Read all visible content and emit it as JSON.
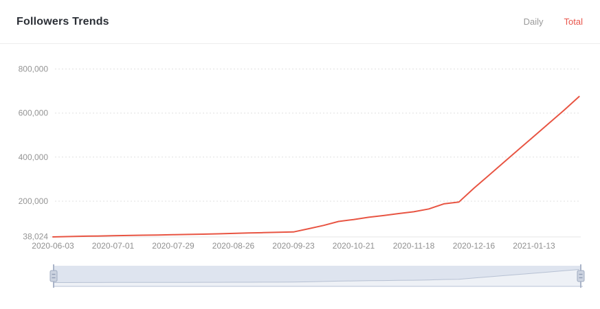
{
  "header": {
    "title": "Followers Trends",
    "tabs": [
      {
        "label": "Daily",
        "active": false
      },
      {
        "label": "Total",
        "active": true
      }
    ]
  },
  "colors": {
    "accent_line": "#e85442",
    "tab_active": "#e8544a",
    "tab_inactive": "#9a9a9a",
    "gridline": "#e0e0e0",
    "axis_line": "#e6e6e6",
    "slider_band": "#dee4ef",
    "slider_shadow": "#eef1f6",
    "slider_curve": "#b7c1d3",
    "slider_handle_fill": "#ccd3e0",
    "slider_handle_border": "#9fabc0"
  },
  "chart_data": {
    "type": "line",
    "title": "Followers Trends",
    "legend": "none",
    "grid": "horizontal dotted",
    "ylim": [
      38024,
      800000
    ],
    "y_tick_values": [
      38024,
      200000,
      400000,
      600000,
      800000
    ],
    "y_tick_labels": [
      "38,024",
      "200,000",
      "400,000",
      "600,000",
      "800,000"
    ],
    "x_tick_labels": [
      "2020-06-03",
      "2020-07-01",
      "2020-07-29",
      "2020-08-26",
      "2020-09-23",
      "2020-10-21",
      "2020-11-18",
      "2020-12-16",
      "2021-01-13"
    ],
    "x": [
      "2020-06-03",
      "2020-06-10",
      "2020-06-17",
      "2020-06-24",
      "2020-07-01",
      "2020-07-08",
      "2020-07-15",
      "2020-07-22",
      "2020-07-29",
      "2020-08-05",
      "2020-08-12",
      "2020-08-19",
      "2020-08-26",
      "2020-09-02",
      "2020-09-09",
      "2020-09-16",
      "2020-09-23",
      "2020-09-30",
      "2020-10-07",
      "2020-10-14",
      "2020-10-21",
      "2020-10-28",
      "2020-11-04",
      "2020-11-11",
      "2020-11-18",
      "2020-11-25",
      "2020-12-02",
      "2020-12-09",
      "2020-12-16",
      "2020-12-23",
      "2020-12-30",
      "2021-01-06",
      "2021-01-13",
      "2021-01-20",
      "2021-01-27",
      "2021-02-03"
    ],
    "series": [
      {
        "name": "Total",
        "color": "#e85442",
        "values": [
          38024,
          39500,
          41000,
          42200,
          43500,
          44600,
          45700,
          46800,
          47900,
          49200,
          50600,
          52000,
          54000,
          56000,
          57500,
          59000,
          60500,
          75000,
          90000,
          108000,
          117000,
          127000,
          135000,
          144000,
          152000,
          165000,
          188000,
          196000,
          259000,
          318000,
          377000,
          436000,
          495000,
          554000,
          613000,
          675000
        ]
      }
    ],
    "range_slider": {
      "selected_start": "2020-06-03",
      "selected_end": "2021-02-03"
    }
  }
}
